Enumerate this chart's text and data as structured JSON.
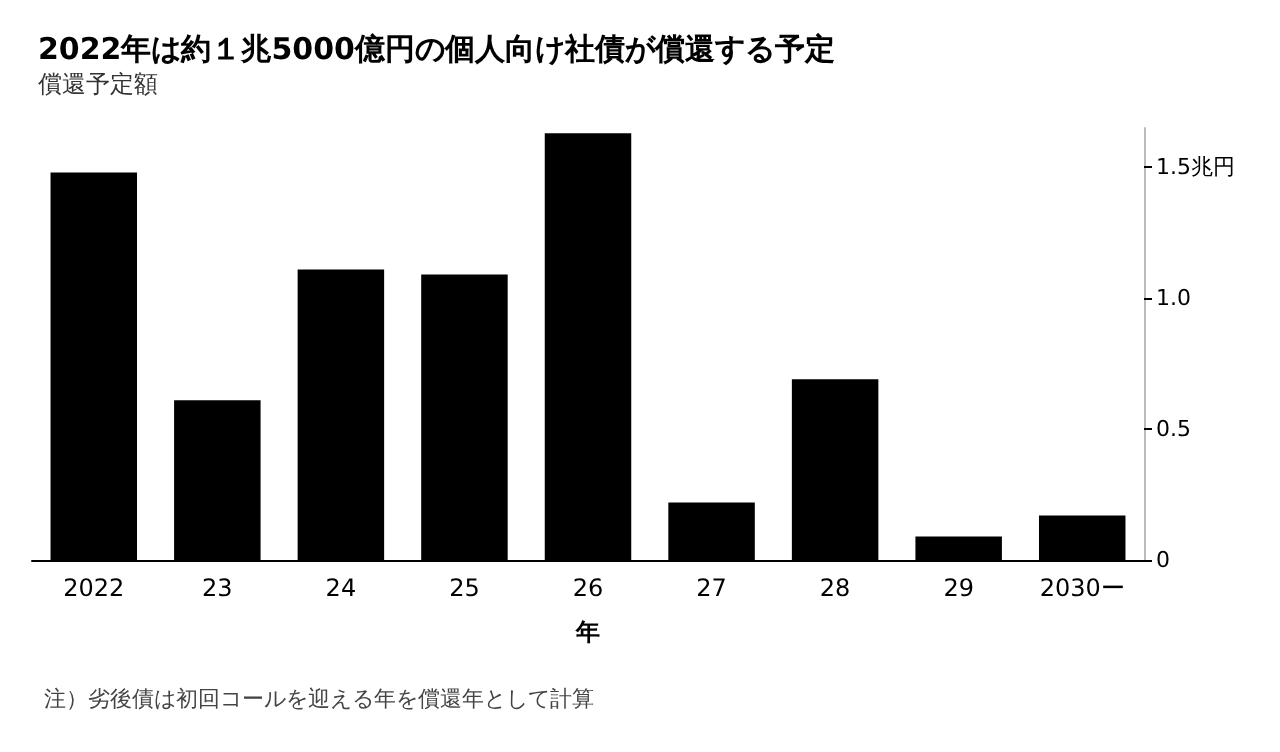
{
  "chart_data": {
    "type": "bar",
    "title": "2022年は約１兆5000億円の個人向け社債が償還する予定",
    "subtitle": "償還予定額",
    "xlabel": "年",
    "categories": [
      "2022",
      "23",
      "24",
      "25",
      "26",
      "27",
      "28",
      "29",
      "2030ー"
    ],
    "values": [
      1.48,
      0.61,
      1.11,
      1.09,
      1.63,
      0.22,
      0.69,
      0.09,
      0.17
    ],
    "color": "#000000",
    "ylim": [
      0,
      1.65
    ],
    "yticks": [
      0,
      0.5,
      {
        "value": 1,
        "label": "1.0"
      },
      {
        "value": 1.5,
        "label": "1.5兆円"
      }
    ],
    "grid": false,
    "annotations": [
      "注）劣後債は初回コールを迎える年を償還年として計算"
    ]
  }
}
